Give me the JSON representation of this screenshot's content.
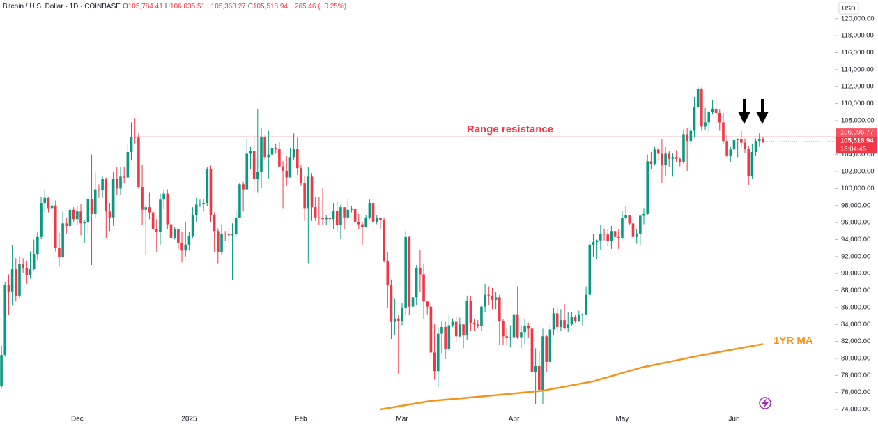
{
  "chart_data": {
    "type": "candlestick",
    "header": {
      "symbol": "Bitcoin / U.S. Dollar · 1D · COINBASE",
      "fields": [
        {
          "key": "O",
          "value": "105,784.41"
        },
        {
          "key": "H",
          "value": "106,035.51"
        },
        {
          "key": "L",
          "value": "105,368.27"
        },
        {
          "key": "C",
          "value": "105,518.94"
        }
      ],
      "change": "−265.46 (−0.25%)"
    },
    "currency": "USD",
    "up_color": "#089981",
    "down_color": "#f23645",
    "xlim": [
      -0.4,
      230.9
    ],
    "xticks": [
      {
        "value": 21,
        "label": "Dec"
      },
      {
        "value": 52,
        "label": "2025"
      },
      {
        "value": 83,
        "label": "Feb"
      },
      {
        "value": 111,
        "label": "Mar"
      },
      {
        "value": 142,
        "label": "Apr"
      },
      {
        "value": 172,
        "label": "May"
      },
      {
        "value": 203,
        "label": "Jun"
      }
    ],
    "ylim": [
      73100,
      122200
    ],
    "yticks": [
      {
        "value": 74000,
        "label": "74,000.00"
      },
      {
        "value": 76000,
        "label": "76,000.00"
      },
      {
        "value": 78000,
        "label": "78,000.00"
      },
      {
        "value": 80000,
        "label": "80,000.00"
      },
      {
        "value": 82000,
        "label": "82,000.00"
      },
      {
        "value": 84000,
        "label": "84,000.00"
      },
      {
        "value": 86000,
        "label": "86,000.00"
      },
      {
        "value": 88000,
        "label": "88,000.00"
      },
      {
        "value": 90000,
        "label": "90,000.00"
      },
      {
        "value": 92000,
        "label": "92,000.00"
      },
      {
        "value": 94000,
        "label": "94,000.00"
      },
      {
        "value": 96000,
        "label": "96,000.00"
      },
      {
        "value": 98000,
        "label": "98,000.00"
      },
      {
        "value": 100000,
        "label": "100,000.00"
      },
      {
        "value": 102000,
        "label": "102,000.00"
      },
      {
        "value": 104000,
        "label": "104,000.00"
      },
      {
        "value": 106000,
        "label": "106,000.00"
      },
      {
        "value": 108000,
        "label": "108,000.00"
      },
      {
        "value": 110000,
        "label": "110,000.00"
      },
      {
        "value": 112000,
        "label": "112,000.00"
      },
      {
        "value": 114000,
        "label": "114,000.00"
      },
      {
        "value": 116000,
        "label": "116,000.00"
      },
      {
        "value": 118000,
        "label": "118,000.00"
      },
      {
        "value": 120000,
        "label": "120,000.00"
      }
    ],
    "candles": [
      [
        76700,
        81500,
        76500,
        80400
      ],
      [
        80400,
        89000,
        80200,
        88700
      ],
      [
        88700,
        89900,
        85100,
        87900
      ],
      [
        87900,
        93300,
        86200,
        90500
      ],
      [
        90500,
        91800,
        86700,
        87400
      ],
      [
        87400,
        91900,
        87100,
        91100
      ],
      [
        91100,
        91800,
        90100,
        90600
      ],
      [
        90600,
        91500,
        88800,
        89800
      ],
      [
        89800,
        92600,
        89400,
        90500
      ],
      [
        90500,
        94000,
        90400,
        92300
      ],
      [
        92300,
        94900,
        91600,
        94300
      ],
      [
        94300,
        99000,
        94100,
        98300
      ],
      [
        98300,
        99800,
        97200,
        98900
      ],
      [
        98900,
        99000,
        97200,
        97700
      ],
      [
        97700,
        98600,
        95800,
        98000
      ],
      [
        98000,
        98600,
        92600,
        93000
      ],
      [
        93000,
        94800,
        90800,
        91900
      ],
      [
        91900,
        97300,
        91800,
        95900
      ],
      [
        95900,
        96600,
        94700,
        95600
      ],
      [
        95600,
        98700,
        95400,
        97500
      ],
      [
        97500,
        97800,
        96000,
        96400
      ],
      [
        96400,
        98000,
        95700,
        97300
      ],
      [
        97300,
        98200,
        94500,
        95900
      ],
      [
        95900,
        96300,
        93600,
        96000
      ],
      [
        96000,
        99000,
        94700,
        98800
      ],
      [
        98800,
        104000,
        91000,
        97000
      ],
      [
        97000,
        101900,
        96500,
        99900
      ],
      [
        99900,
        100500,
        98900,
        99800
      ],
      [
        99800,
        101400,
        98900,
        101100
      ],
      [
        101100,
        101300,
        94200,
        97300
      ],
      [
        97300,
        98300,
        95000,
        96600
      ],
      [
        96600,
        101900,
        95600,
        101100
      ],
      [
        101100,
        102500,
        99300,
        100000
      ],
      [
        100000,
        102500,
        99200,
        101400
      ],
      [
        101400,
        102600,
        100600,
        101300
      ],
      [
        101300,
        105200,
        101200,
        104300
      ],
      [
        104300,
        107800,
        103300,
        106100
      ],
      [
        106100,
        108300,
        105300,
        106000
      ],
      [
        106000,
        106500,
        100000,
        100200
      ],
      [
        100200,
        102800,
        95700,
        97500
      ],
      [
        97500,
        98100,
        92200,
        97800
      ],
      [
        97800,
        99500,
        96400,
        97200
      ],
      [
        97200,
        97300,
        94200,
        95200
      ],
      [
        95200,
        96400,
        92500,
        94900
      ],
      [
        94900,
        99400,
        93400,
        98700
      ],
      [
        98700,
        99900,
        97600,
        99400
      ],
      [
        99400,
        99900,
        95200,
        95800
      ],
      [
        95800,
        97300,
        93300,
        94200
      ],
      [
        94200,
        95500,
        94000,
        95200
      ],
      [
        95200,
        95200,
        92900,
        93600
      ],
      [
        93600,
        94900,
        91300,
        92700
      ],
      [
        92700,
        96100,
        92000,
        93400
      ],
      [
        93400,
        94900,
        92700,
        94400
      ],
      [
        94400,
        97800,
        94200,
        96900
      ],
      [
        96900,
        98900,
        96100,
        98100
      ],
      [
        98100,
        98700,
        97800,
        98200
      ],
      [
        98200,
        98800,
        97300,
        98300
      ],
      [
        98300,
        102500,
        97900,
        102300
      ],
      [
        102300,
        102700,
        96100,
        96900
      ],
      [
        96900,
        97200,
        92500,
        95000
      ],
      [
        95000,
        95300,
        91200,
        92500
      ],
      [
        92500,
        95800,
        92200,
        94700
      ],
      [
        94700,
        95000,
        93800,
        94600
      ],
      [
        94600,
        95400,
        93700,
        94500
      ],
      [
        94500,
        95900,
        89200,
        94600
      ],
      [
        94600,
        97400,
        94300,
        96500
      ],
      [
        96500,
        100700,
        96500,
        100500
      ],
      [
        100500,
        100800,
        97300,
        99900
      ],
      [
        99900,
        105900,
        99900,
        104100
      ],
      [
        104100,
        104900,
        102300,
        104400
      ],
      [
        104400,
        106300,
        99600,
        101100
      ],
      [
        101100,
        109300,
        99500,
        102000
      ],
      [
        102000,
        107200,
        100100,
        106100
      ],
      [
        106100,
        106300,
        103300,
        103700
      ],
      [
        103700,
        106800,
        101200,
        104000
      ],
      [
        104000,
        107100,
        102800,
        104800
      ],
      [
        104800,
        105300,
        104100,
        104700
      ],
      [
        104700,
        105500,
        102500,
        102600
      ],
      [
        102600,
        103200,
        97700,
        102100
      ],
      [
        102100,
        103800,
        100300,
        101300
      ],
      [
        101300,
        104800,
        101300,
        103700
      ],
      [
        103700,
        106500,
        103300,
        104700
      ],
      [
        104700,
        106000,
        101600,
        102400
      ],
      [
        102400,
        102800,
        100300,
        100600
      ],
      [
        100600,
        101500,
        96200,
        97700
      ],
      [
        97700,
        102500,
        91200,
        101400
      ],
      [
        101400,
        101800,
        96200,
        97800
      ],
      [
        97800,
        99000,
        96200,
        96600
      ],
      [
        96600,
        99000,
        95700,
        96500
      ],
      [
        96500,
        100100,
        95700,
        96400
      ],
      [
        96400,
        96900,
        95700,
        96500
      ],
      [
        96500,
        97300,
        94800,
        96400
      ],
      [
        96400,
        98300,
        95200,
        97400
      ],
      [
        97400,
        98500,
        94900,
        95700
      ],
      [
        95700,
        98100,
        94100,
        97800
      ],
      [
        97800,
        97800,
        95200,
        96600
      ],
      [
        96600,
        98800,
        96300,
        97500
      ],
      [
        97500,
        97900,
        97200,
        97600
      ],
      [
        97600,
        97700,
        96000,
        96100
      ],
      [
        96100,
        97000,
        95200,
        95800
      ],
      [
        95800,
        96000,
        93400,
        95500
      ],
      [
        95500,
        96900,
        95400,
        96600
      ],
      [
        96600,
        98700,
        96400,
        98300
      ],
      [
        98300,
        99500,
        94900,
        96100
      ],
      [
        96100,
        96900,
        95800,
        96500
      ],
      [
        96500,
        96600,
        95300,
        96300
      ],
      [
        96300,
        96500,
        91300,
        91500
      ],
      [
        91500,
        92500,
        86000,
        88700
      ],
      [
        88700,
        89300,
        82300,
        84300
      ],
      [
        84300,
        87000,
        82800,
        84700
      ],
      [
        84700,
        85100,
        78200,
        84400
      ],
      [
        84400,
        86500,
        83900,
        86000
      ],
      [
        86000,
        95000,
        85100,
        94300
      ],
      [
        94300,
        94400,
        85100,
        86100
      ],
      [
        86100,
        88900,
        81400,
        87200
      ],
      [
        87200,
        91000,
        86300,
        90600
      ],
      [
        90600,
        92800,
        87800,
        89900
      ],
      [
        89900,
        91200,
        84700,
        86700
      ],
      [
        86700,
        86800,
        85200,
        86100
      ],
      [
        86100,
        86500,
        80000,
        80700
      ],
      [
        80700,
        84000,
        77500,
        78500
      ],
      [
        78500,
        83600,
        76600,
        82900
      ],
      [
        82900,
        84400,
        80600,
        83700
      ],
      [
        83700,
        84300,
        79900,
        81100
      ],
      [
        81100,
        85200,
        80800,
        83900
      ],
      [
        83900,
        84700,
        83700,
        84300
      ],
      [
        84300,
        85000,
        82000,
        82600
      ],
      [
        82600,
        84800,
        82500,
        84000
      ],
      [
        84000,
        84000,
        81200,
        82700
      ],
      [
        82700,
        87400,
        82200,
        86800
      ],
      [
        86800,
        87400,
        83200,
        84200
      ],
      [
        84200,
        84700,
        83200,
        84000
      ],
      [
        84000,
        84500,
        83600,
        83800
      ],
      [
        83800,
        86200,
        83200,
        86100
      ],
      [
        86100,
        88800,
        85500,
        87500
      ],
      [
        87500,
        88500,
        86300,
        87400
      ],
      [
        87400,
        88300,
        85800,
        86900
      ],
      [
        86900,
        87800,
        85800,
        87200
      ],
      [
        87200,
        87500,
        81600,
        84400
      ],
      [
        84400,
        84600,
        81600,
        82600
      ],
      [
        82600,
        83500,
        81600,
        82400
      ],
      [
        82400,
        83900,
        81300,
        82500
      ],
      [
        82500,
        85500,
        82400,
        85200
      ],
      [
        85200,
        88500,
        82300,
        82500
      ],
      [
        82500,
        83900,
        81200,
        83100
      ],
      [
        83100,
        84700,
        81700,
        83800
      ],
      [
        83800,
        84200,
        82400,
        83500
      ],
      [
        83500,
        83800,
        77200,
        78400
      ],
      [
        78400,
        81200,
        74600,
        79100
      ],
      [
        79100,
        80800,
        76200,
        76300
      ],
      [
        76300,
        83500,
        74600,
        82600
      ],
      [
        82600,
        82700,
        78400,
        79600
      ],
      [
        79600,
        84200,
        78900,
        83400
      ],
      [
        83400,
        85900,
        82700,
        85300
      ],
      [
        85300,
        86100,
        83000,
        83700
      ],
      [
        83700,
        85800,
        83200,
        84500
      ],
      [
        84500,
        86400,
        83400,
        83600
      ],
      [
        83600,
        85500,
        83100,
        84000
      ],
      [
        84000,
        85500,
        83800,
        84900
      ],
      [
        84900,
        85100,
        84200,
        84400
      ],
      [
        84400,
        85600,
        84300,
        85100
      ],
      [
        85100,
        85300,
        83900,
        85200
      ],
      [
        85200,
        88500,
        85100,
        87500
      ],
      [
        87500,
        93800,
        87100,
        93400
      ],
      [
        93400,
        94700,
        91900,
        93700
      ],
      [
        93700,
        94000,
        91700,
        93900
      ],
      [
        93900,
        95700,
        92800,
        94700
      ],
      [
        94700,
        95300,
        93900,
        94600
      ],
      [
        94600,
        95200,
        93200,
        93800
      ],
      [
        93800,
        95600,
        92900,
        95000
      ],
      [
        95000,
        95500,
        93800,
        94300
      ],
      [
        94300,
        95200,
        92900,
        94200
      ],
      [
        94200,
        97400,
        94100,
        96500
      ],
      [
        96500,
        97900,
        96300,
        96900
      ],
      [
        96900,
        96900,
        95700,
        95900
      ],
      [
        95900,
        96300,
        94000,
        94300
      ],
      [
        94300,
        95200,
        93500,
        94700
      ],
      [
        94700,
        96900,
        93400,
        96800
      ],
      [
        96800,
        97700,
        95800,
        97000
      ],
      [
        97000,
        104000,
        96900,
        103200
      ],
      [
        103200,
        104300,
        102300,
        102900
      ],
      [
        102900,
        104900,
        102800,
        104600
      ],
      [
        104600,
        104900,
        103300,
        104100
      ],
      [
        104100,
        105800,
        100700,
        102800
      ],
      [
        102800,
        104900,
        101500,
        104100
      ],
      [
        104100,
        104400,
        102600,
        103500
      ],
      [
        103500,
        104200,
        101400,
        103700
      ],
      [
        103700,
        104500,
        103100,
        103500
      ],
      [
        103500,
        103700,
        102600,
        103100
      ],
      [
        103100,
        107000,
        102900,
        106400
      ],
      [
        106400,
        107100,
        102100,
        105600
      ],
      [
        105600,
        107300,
        105100,
        106800
      ],
      [
        106800,
        110800,
        106100,
        109600
      ],
      [
        109600,
        112000,
        109300,
        111700
      ],
      [
        111700,
        111900,
        106800,
        107300
      ],
      [
        107300,
        109500,
        106900,
        107800
      ],
      [
        107800,
        109200,
        106700,
        109000
      ],
      [
        109000,
        110400,
        108700,
        109400
      ],
      [
        109400,
        110700,
        107600,
        108900
      ],
      [
        108900,
        109300,
        106800,
        107800
      ],
      [
        107800,
        108900,
        105300,
        105600
      ],
      [
        105600,
        106300,
        103700,
        103900
      ],
      [
        103900,
        104900,
        103100,
        104600
      ],
      [
        104600,
        105900,
        103900,
        105700
      ],
      [
        105700,
        105900,
        103700,
        105800
      ],
      [
        105800,
        106800,
        104900,
        105400
      ],
      [
        105400,
        105900,
        104200,
        104700
      ],
      [
        104700,
        105000,
        100400,
        101500
      ],
      [
        101500,
        105300,
        101100,
        104300
      ],
      [
        104300,
        105900,
        103900,
        105600
      ],
      [
        105600,
        106500,
        104900,
        105800
      ],
      [
        105784.41,
        106035.51,
        105368.27,
        105518.94
      ]
    ],
    "resistance": {
      "label": "Range resistance",
      "value": 106096.77,
      "value_label": "106,096.77",
      "start": 37
    },
    "last_price": {
      "label": "105,518.94",
      "countdown": "18:04:45"
    },
    "ma": {
      "name": "1YR MA",
      "color": "#f7931a",
      "x": [
        105,
        119,
        135,
        150,
        164,
        177,
        193,
        211
      ],
      "values": [
        74000,
        75000,
        75600,
        76200,
        77300,
        78900,
        80300,
        81700
      ]
    }
  }
}
